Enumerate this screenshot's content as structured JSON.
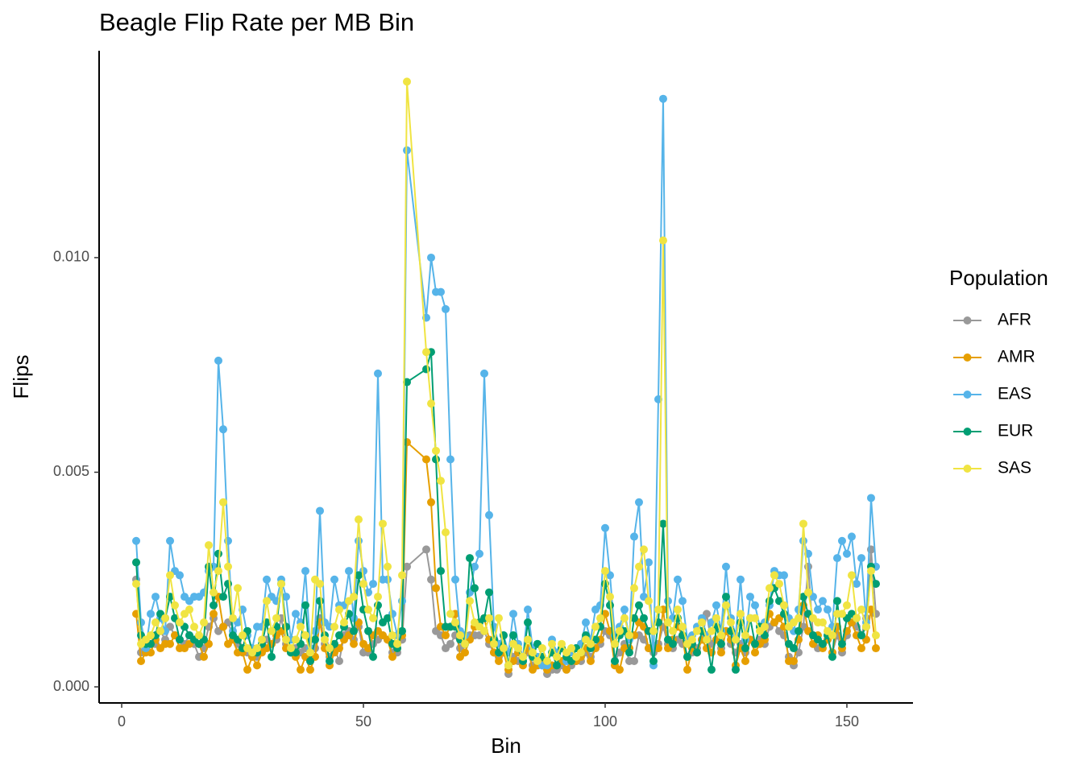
{
  "chart_data": {
    "type": "line",
    "title": "Beagle Flip Rate per MB Bin",
    "x_label": "Bin",
    "y_label": "Flips",
    "legend_title": "Population",
    "legend_position": "right",
    "x": [
      3,
      4,
      5,
      6,
      7,
      8,
      9,
      10,
      11,
      12,
      13,
      14,
      15,
      16,
      17,
      18,
      19,
      20,
      21,
      22,
      23,
      24,
      25,
      26,
      27,
      28,
      29,
      30,
      31,
      32,
      33,
      34,
      35,
      36,
      37,
      38,
      39,
      40,
      41,
      42,
      43,
      44,
      45,
      46,
      47,
      48,
      49,
      50,
      51,
      52,
      53,
      54,
      55,
      56,
      57,
      58,
      59,
      63,
      64,
      65,
      66,
      67,
      68,
      69,
      70,
      71,
      72,
      73,
      74,
      75,
      76,
      77,
      78,
      79,
      80,
      81,
      82,
      83,
      84,
      85,
      86,
      87,
      88,
      89,
      90,
      91,
      92,
      93,
      94,
      95,
      96,
      97,
      98,
      99,
      100,
      101,
      102,
      103,
      104,
      105,
      106,
      107,
      108,
      109,
      110,
      111,
      112,
      113,
      114,
      115,
      116,
      117,
      118,
      119,
      120,
      121,
      122,
      123,
      124,
      125,
      126,
      127,
      128,
      129,
      130,
      131,
      132,
      133,
      134,
      135,
      136,
      137,
      138,
      139,
      140,
      141,
      142,
      143,
      144,
      145,
      146,
      147,
      148,
      149,
      150,
      151,
      152,
      153,
      154,
      155,
      156
    ],
    "series": [
      {
        "name": "AFR",
        "color": "#999999",
        "values": [
          0.0025,
          0.0008,
          0.0009,
          0.001,
          0.001,
          0.0013,
          0.0011,
          0.0014,
          0.0012,
          0.0011,
          0.001,
          0.0012,
          0.001,
          0.0007,
          0.0009,
          0.0014,
          0.0016,
          0.0013,
          0.0014,
          0.0015,
          0.0012,
          0.001,
          0.0009,
          0.0008,
          0.0007,
          0.0007,
          0.0009,
          0.0011,
          0.001,
          0.0011,
          0.0016,
          0.001,
          0.0008,
          0.0009,
          0.0008,
          0.0009,
          0.0006,
          0.0009,
          0.0016,
          0.001,
          0.0007,
          0.0009,
          0.0006,
          0.0012,
          0.0013,
          0.0011,
          0.0014,
          0.0008,
          0.0008,
          0.001,
          0.0011,
          0.0012,
          0.0011,
          0.0008,
          0.0008,
          0.0011,
          0.0028,
          0.0032,
          0.0025,
          0.0013,
          0.0012,
          0.0009,
          0.001,
          0.0012,
          0.0009,
          0.001,
          0.0012,
          0.0012,
          0.0012,
          0.0013,
          0.001,
          0.0008,
          0.0007,
          0.0009,
          0.0003,
          0.0007,
          0.0006,
          0.0006,
          0.0008,
          0.0005,
          0.0005,
          0.0005,
          0.0003,
          0.0004,
          0.0004,
          0.0005,
          0.0004,
          0.0005,
          0.0006,
          0.0006,
          0.0008,
          0.0007,
          0.0009,
          0.001,
          0.0013,
          0.0012,
          0.0006,
          0.0008,
          0.001,
          0.0006,
          0.0006,
          0.0012,
          0.0011,
          0.0009,
          0.0008,
          0.001,
          0.0014,
          0.001,
          0.0009,
          0.0011,
          0.001,
          0.0007,
          0.0008,
          0.0009,
          0.0011,
          0.0017,
          0.001,
          0.0011,
          0.0009,
          0.0013,
          0.001,
          0.0008,
          0.001,
          0.0008,
          0.0011,
          0.001,
          0.0011,
          0.001,
          0.0014,
          0.0015,
          0.0013,
          0.0012,
          0.0007,
          0.0005,
          0.0008,
          0.0014,
          0.0028,
          0.0012,
          0.0009,
          0.001,
          0.0011,
          0.0008,
          0.0012,
          0.0008,
          0.0012,
          0.0015,
          0.0014,
          0.0012,
          0.0016,
          0.0032,
          0.0017
        ]
      },
      {
        "name": "AMR",
        "color": "#E69F00",
        "values": [
          0.0017,
          0.0006,
          0.0008,
          0.0008,
          0.0011,
          0.0009,
          0.001,
          0.001,
          0.0012,
          0.0009,
          0.0009,
          0.001,
          0.0011,
          0.001,
          0.0007,
          0.001,
          0.0017,
          0.0021,
          0.0014,
          0.001,
          0.0011,
          0.0008,
          0.0008,
          0.0004,
          0.0007,
          0.0005,
          0.0008,
          0.0009,
          0.001,
          0.0012,
          0.0013,
          0.0009,
          0.0008,
          0.0007,
          0.0004,
          0.0007,
          0.0004,
          0.0007,
          0.0015,
          0.0009,
          0.0005,
          0.0008,
          0.0009,
          0.0011,
          0.0012,
          0.001,
          0.0015,
          0.001,
          0.0009,
          0.0012,
          0.0013,
          0.0012,
          0.0011,
          0.0007,
          0.0009,
          0.0012,
          0.0057,
          0.0053,
          0.0043,
          0.0023,
          0.0014,
          0.0012,
          0.0014,
          0.0017,
          0.0007,
          0.0008,
          0.0011,
          0.0014,
          0.0015,
          0.0016,
          0.0011,
          0.0008,
          0.0006,
          0.0008,
          0.0004,
          0.0006,
          0.0008,
          0.0005,
          0.0009,
          0.0004,
          0.0005,
          0.0006,
          0.0004,
          0.0005,
          0.0005,
          0.0006,
          0.0004,
          0.0006,
          0.0006,
          0.0007,
          0.0009,
          0.0006,
          0.0009,
          0.0011,
          0.0017,
          0.0013,
          0.0005,
          0.0004,
          0.0009,
          0.0009,
          0.0012,
          0.0015,
          0.0014,
          0.0009,
          0.0009,
          0.0009,
          0.0018,
          0.0009,
          0.0011,
          0.0014,
          0.0012,
          0.0004,
          0.0009,
          0.0008,
          0.0011,
          0.0009,
          0.0008,
          0.0011,
          0.0008,
          0.0013,
          0.0011,
          0.0005,
          0.0009,
          0.0006,
          0.0011,
          0.0008,
          0.001,
          0.0011,
          0.0017,
          0.0015,
          0.0016,
          0.0014,
          0.0006,
          0.0006,
          0.0011,
          0.0019,
          0.0013,
          0.001,
          0.0012,
          0.0009,
          0.0011,
          0.0008,
          0.0014,
          0.0009,
          0.0013,
          0.0015,
          0.0012,
          0.0009,
          0.0011,
          0.0018,
          0.0009
        ]
      },
      {
        "name": "EAS",
        "color": "#56B4E9",
        "values": [
          0.0034,
          0.0015,
          0.0009,
          0.0017,
          0.0021,
          0.0016,
          0.0013,
          0.0034,
          0.0027,
          0.0026,
          0.0021,
          0.002,
          0.0021,
          0.0021,
          0.0022,
          0.0027,
          0.0028,
          0.0076,
          0.006,
          0.0034,
          0.0013,
          0.0015,
          0.0018,
          0.0012,
          0.0009,
          0.0014,
          0.0014,
          0.0025,
          0.0021,
          0.002,
          0.0025,
          0.0021,
          0.0011,
          0.0017,
          0.0015,
          0.0027,
          0.0009,
          0.0013,
          0.0041,
          0.0015,
          0.0014,
          0.0025,
          0.0019,
          0.0019,
          0.0027,
          0.0016,
          0.0034,
          0.0027,
          0.0022,
          0.0024,
          0.0073,
          0.0025,
          0.0025,
          0.0017,
          0.0012,
          0.002,
          0.0125,
          0.0086,
          0.01,
          0.0092,
          0.0092,
          0.0088,
          0.0053,
          0.0025,
          0.0013,
          0.0012,
          0.0022,
          0.0028,
          0.0031,
          0.0073,
          0.004,
          0.0014,
          0.001,
          0.0012,
          0.0008,
          0.0017,
          0.001,
          0.0007,
          0.0018,
          0.0009,
          0.0007,
          0.0005,
          0.0005,
          0.0011,
          0.0008,
          0.0009,
          0.0006,
          0.0008,
          0.0009,
          0.001,
          0.0015,
          0.0011,
          0.0018,
          0.0019,
          0.0037,
          0.0026,
          0.0012,
          0.0014,
          0.0018,
          0.0011,
          0.0035,
          0.0043,
          0.0021,
          0.0029,
          0.0005,
          0.0067,
          0.0137,
          0.002,
          0.0016,
          0.0025,
          0.002,
          0.0011,
          0.0012,
          0.0014,
          0.0016,
          0.0012,
          0.0015,
          0.0019,
          0.0013,
          0.0028,
          0.0016,
          0.0012,
          0.0025,
          0.0011,
          0.0021,
          0.0019,
          0.0014,
          0.0015,
          0.0019,
          0.0027,
          0.0026,
          0.0026,
          0.0016,
          0.0013,
          0.0018,
          0.0034,
          0.0031,
          0.0021,
          0.0018,
          0.002,
          0.0018,
          0.0014,
          0.003,
          0.0034,
          0.0031,
          0.0035,
          0.0024,
          0.003,
          0.0015,
          0.0044,
          0.0028
        ]
      },
      {
        "name": "EUR",
        "color": "#009E73",
        "values": [
          0.0029,
          0.0012,
          0.001,
          0.001,
          0.0012,
          0.0017,
          0.0016,
          0.0021,
          0.0016,
          0.0011,
          0.0014,
          0.0012,
          0.0011,
          0.001,
          0.0011,
          0.0028,
          0.0019,
          0.0031,
          0.0021,
          0.0024,
          0.0012,
          0.0011,
          0.0009,
          0.0013,
          0.0008,
          0.0008,
          0.001,
          0.0015,
          0.0007,
          0.0014,
          0.0024,
          0.0014,
          0.0008,
          0.0008,
          0.001,
          0.0019,
          0.0006,
          0.0011,
          0.002,
          0.0012,
          0.0006,
          0.001,
          0.0012,
          0.0014,
          0.0017,
          0.0013,
          0.0026,
          0.0018,
          0.0013,
          0.0007,
          0.0019,
          0.0015,
          0.0016,
          0.001,
          0.0009,
          0.0013,
          0.0071,
          0.0074,
          0.0078,
          0.0053,
          0.0027,
          0.0014,
          0.0014,
          0.0014,
          0.0011,
          0.001,
          0.003,
          0.0023,
          0.0015,
          0.0016,
          0.0022,
          0.0011,
          0.0008,
          0.0012,
          0.0005,
          0.0012,
          0.0009,
          0.0006,
          0.0015,
          0.0007,
          0.001,
          0.0007,
          0.0006,
          0.0008,
          0.0005,
          0.0009,
          0.0007,
          0.0006,
          0.0009,
          0.0008,
          0.0012,
          0.0009,
          0.0011,
          0.0014,
          0.0024,
          0.0019,
          0.0006,
          0.0012,
          0.0013,
          0.0008,
          0.0016,
          0.0019,
          0.0016,
          0.0013,
          0.0006,
          0.0015,
          0.0038,
          0.0011,
          0.001,
          0.0016,
          0.0012,
          0.0007,
          0.001,
          0.0008,
          0.0013,
          0.0011,
          0.0004,
          0.0014,
          0.001,
          0.0021,
          0.0013,
          0.0004,
          0.0015,
          0.0009,
          0.0016,
          0.001,
          0.0014,
          0.0012,
          0.002,
          0.0023,
          0.002,
          0.0017,
          0.001,
          0.0009,
          0.0013,
          0.0021,
          0.0017,
          0.0012,
          0.0011,
          0.001,
          0.0012,
          0.0007,
          0.002,
          0.001,
          0.0016,
          0.0017,
          0.0016,
          0.0012,
          0.0014,
          0.0028,
          0.0024
        ]
      },
      {
        "name": "SAS",
        "color": "#F0E442",
        "values": [
          0.0024,
          0.001,
          0.0011,
          0.0012,
          0.0015,
          0.0013,
          0.0016,
          0.0026,
          0.0019,
          0.0015,
          0.0017,
          0.0018,
          0.0014,
          0.0012,
          0.0015,
          0.0033,
          0.0022,
          0.0027,
          0.0043,
          0.0028,
          0.0016,
          0.0023,
          0.0012,
          0.0009,
          0.0008,
          0.0009,
          0.0011,
          0.002,
          0.0013,
          0.0016,
          0.0024,
          0.0011,
          0.0009,
          0.0011,
          0.0014,
          0.0012,
          0.0008,
          0.0025,
          0.0024,
          0.0011,
          0.0009,
          0.0014,
          0.0018,
          0.0015,
          0.002,
          0.0021,
          0.0039,
          0.0024,
          0.0018,
          0.0016,
          0.0021,
          0.0038,
          0.0028,
          0.0012,
          0.001,
          0.0026,
          0.0141,
          0.0078,
          0.0066,
          0.0055,
          0.0048,
          0.0036,
          0.0017,
          0.0015,
          0.0012,
          0.001,
          0.002,
          0.0015,
          0.0014,
          0.0013,
          0.0016,
          0.001,
          0.0016,
          0.0009,
          0.0005,
          0.001,
          0.0009,
          0.0007,
          0.0011,
          0.0008,
          0.0006,
          0.0009,
          0.0006,
          0.001,
          0.0007,
          0.001,
          0.0008,
          0.0009,
          0.0007,
          0.0008,
          0.0011,
          0.001,
          0.0014,
          0.0016,
          0.0027,
          0.0021,
          0.001,
          0.0013,
          0.0016,
          0.0012,
          0.0023,
          0.0028,
          0.0032,
          0.002,
          0.0013,
          0.0018,
          0.0104,
          0.0015,
          0.0013,
          0.0018,
          0.0014,
          0.001,
          0.0011,
          0.0013,
          0.0015,
          0.0011,
          0.0013,
          0.0016,
          0.0012,
          0.0019,
          0.0015,
          0.0011,
          0.0017,
          0.0012,
          0.0016,
          0.0016,
          0.0013,
          0.0014,
          0.0023,
          0.0026,
          0.0024,
          0.0019,
          0.0014,
          0.0015,
          0.0016,
          0.0038,
          0.0022,
          0.0016,
          0.0015,
          0.0015,
          0.0013,
          0.0012,
          0.0017,
          0.0017,
          0.0019,
          0.0026,
          0.0016,
          0.0018,
          0.0014,
          0.0027,
          0.0012
        ]
      }
    ],
    "xlim": [
      -4.67,
      163.67
    ],
    "xticks": [
      0,
      50,
      100,
      150
    ],
    "ylim": [
      -0.000375,
      0.01482
    ],
    "yticks": [
      {
        "value": 0,
        "label": "0.000"
      },
      {
        "value": 0.005,
        "label": "0.005"
      },
      {
        "value": 0.01,
        "label": "0.010"
      }
    ],
    "grid": false
  }
}
